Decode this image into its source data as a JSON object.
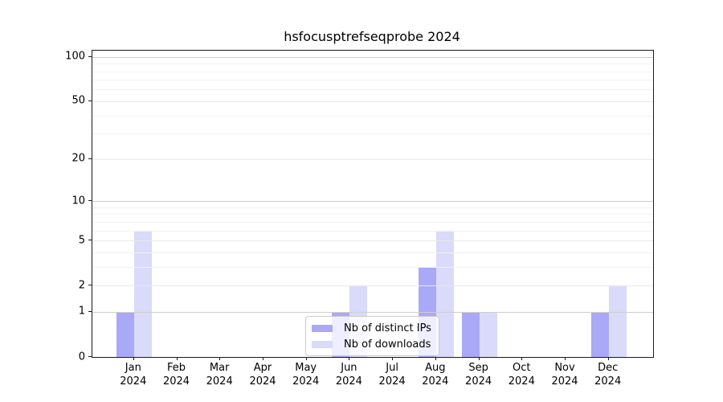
{
  "title": "hsfocusptrefseqprobe 2024",
  "legend": {
    "items": [
      {
        "label": "Nb of distinct IPs",
        "color": "#a9a9f7"
      },
      {
        "label": "Nb of downloads",
        "color": "#dadafa"
      }
    ]
  },
  "chart_data": {
    "type": "bar",
    "title": "hsfocusptrefseqprobe 2024",
    "categories": [
      "Jan",
      "Feb",
      "Mar",
      "Apr",
      "May",
      "Jun",
      "Jul",
      "Aug",
      "Sep",
      "Oct",
      "Nov",
      "Dec"
    ],
    "x_year": "2024",
    "series": [
      {
        "name": "Nb of distinct IPs",
        "color": "#a9a9f7",
        "values": [
          1,
          0,
          0,
          0,
          0,
          1,
          0,
          3,
          1,
          0,
          0,
          1
        ]
      },
      {
        "name": "Nb of downloads",
        "color": "#dadafa",
        "values": [
          6,
          0,
          0,
          0,
          0,
          2,
          0,
          6,
          1,
          0,
          0,
          2
        ]
      }
    ],
    "y_axis": {
      "scale": "log1p",
      "tick_values": [
        0,
        1,
        2,
        5,
        10,
        20,
        50,
        100
      ],
      "major_gridlines": [
        1,
        10,
        100
      ],
      "mid_gridlines": [
        2,
        5,
        20,
        50
      ],
      "minor_gridlines": [
        3,
        4,
        6,
        7,
        8,
        9,
        30,
        40,
        60,
        70,
        80,
        90
      ],
      "ylim": [
        0,
        110
      ]
    },
    "xlabel": "",
    "ylabel": "",
    "grid": true,
    "legend_position": "lower center"
  }
}
